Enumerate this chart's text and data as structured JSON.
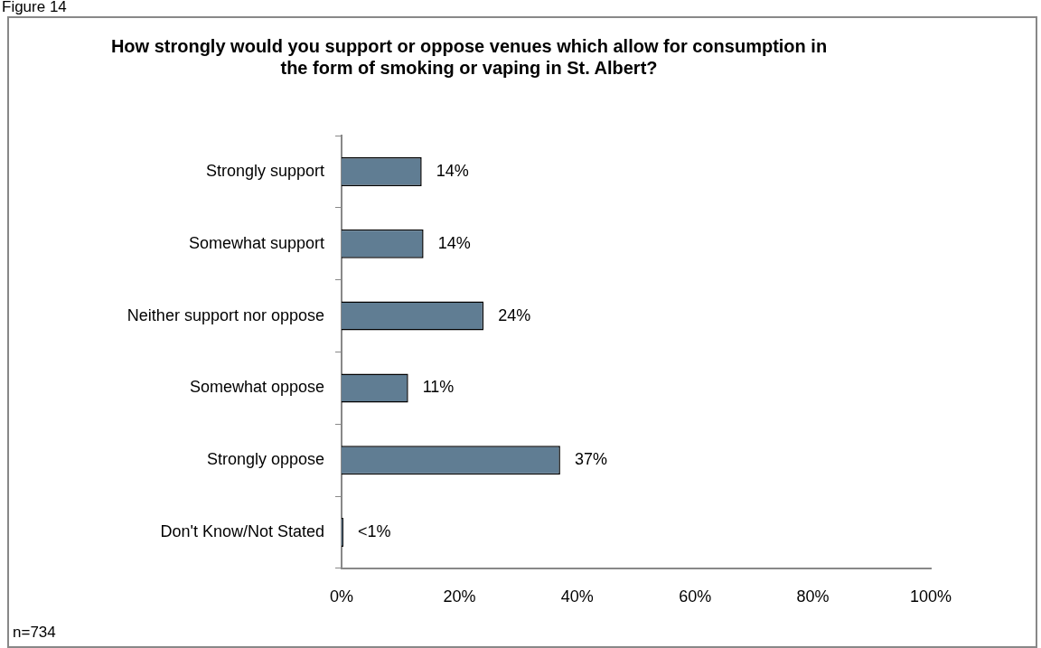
{
  "chart_data": {
    "type": "bar",
    "orientation": "horizontal",
    "title": "How strongly would you support or oppose venues which allow for consumption in the form of smoking or vaping in St. Albert?",
    "categories": [
      "Strongly support",
      "Somewhat support",
      "Neither support nor oppose",
      "Somewhat oppose",
      "Strongly oppose",
      "Don't Know/Not Stated"
    ],
    "values": [
      13.6,
      13.9,
      24.1,
      11.3,
      37.1,
      0.3
    ],
    "value_labels": [
      "14%",
      "14%",
      "24%",
      "11%",
      "37%",
      "<1%"
    ],
    "color": "#607d93",
    "xlim": [
      0,
      100
    ],
    "xticks": [
      {
        "value": 0,
        "label": "0%"
      },
      {
        "value": 20,
        "label": "20%"
      },
      {
        "value": 40,
        "label": "40%"
      },
      {
        "value": 60,
        "label": "60%"
      },
      {
        "value": 80,
        "label": "80%"
      },
      {
        "value": 100,
        "label": "100%"
      }
    ],
    "grid": false,
    "legend": false,
    "annotations": [
      "Figure 14",
      "n=734"
    ]
  }
}
